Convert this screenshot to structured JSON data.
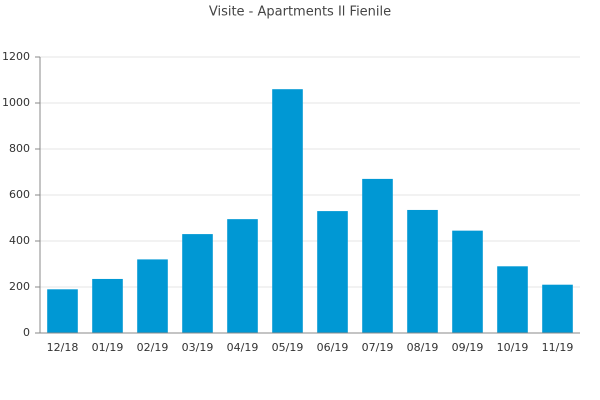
{
  "chart_data": {
    "type": "bar",
    "title": "Visite - Apartments Il Fienile",
    "categories": [
      "12/18",
      "01/19",
      "02/19",
      "03/19",
      "04/19",
      "05/19",
      "06/19",
      "07/19",
      "08/19",
      "09/19",
      "10/19",
      "11/19"
    ],
    "values": [
      190,
      235,
      320,
      430,
      495,
      1060,
      530,
      670,
      535,
      445,
      290,
      210
    ],
    "color": "#0098d4",
    "ylim": [
      0,
      1200
    ],
    "yticks": [
      0,
      200,
      400,
      600,
      800,
      1000,
      1200
    ],
    "grid": true
  }
}
